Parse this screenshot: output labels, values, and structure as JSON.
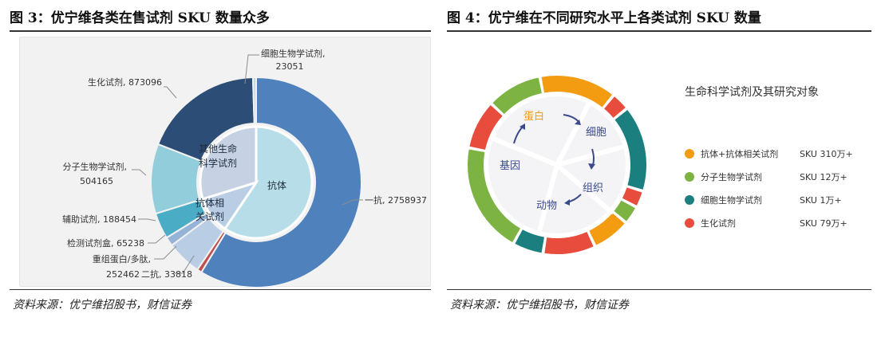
{
  "left": {
    "title": "图 3：优宁维各类在售试剂 SKU 数量众多",
    "source": "资料来源：优宁维招股书，财信证券",
    "chart_data": {
      "type": "pie",
      "title": "",
      "outer": {
        "slices": [
          {
            "label": "一抗",
            "value": 2758937,
            "color": "#4f81bd"
          },
          {
            "label": "二抗",
            "value": 33818,
            "color": "#c0504d"
          },
          {
            "label": "重组蛋白/多肽",
            "value": 252462,
            "color": "#b9cde5"
          },
          {
            "label": "检测试剂盒",
            "value": 65238,
            "color": "#95b3d7"
          },
          {
            "label": "辅助试剂",
            "value": 188454,
            "color": "#4bacc6"
          },
          {
            "label": "分子生物学试剂",
            "value": 504165,
            "color": "#92cddc"
          },
          {
            "label": "生化试剂",
            "value": 873096,
            "color": "#2c4d75"
          },
          {
            "label": "细胞生物学试剂",
            "value": 23051,
            "color": "#b7dee8"
          }
        ]
      },
      "inner": {
        "slices": [
          {
            "label": "抗体",
            "value": 2792755,
            "color": "#b7dee8"
          },
          {
            "label": "抗体相关试剂",
            "value": 506154,
            "color": "#b9cde5"
          },
          {
            "label": "其他生命科学试剂",
            "value": 1400312,
            "color": "#c6d2e3"
          }
        ],
        "label_lines": {
          "antibody": "抗体",
          "related": [
            "抗体相",
            "关试剂"
          ],
          "other": [
            "其他生命",
            "科学试剂"
          ]
        }
      },
      "callouts": {
        "yikang": "一抗, 2758937",
        "shenghua": "生化试剂, 873096",
        "xibao_name": "细胞生物学试剂,",
        "xibao_val": "23051",
        "fenzi_name": "分子生物学试剂,",
        "fenzi_val": "504165",
        "fuzhu": "辅助试剂, 188454",
        "jiance": "检测试剂盒, 65238",
        "chongzu_name": "重组蛋白/多肽,",
        "chongzu_val": "252462",
        "erkang": "二抗, 33818"
      }
    }
  },
  "right": {
    "title": "图 4：优宁维在不同研究水平上各类试剂 SKU 数量",
    "source": "资料来源：优宁维招股书，财信证券",
    "diagram": {
      "ring_words": {
        "protein": "蛋白",
        "cell": "细胞",
        "tissue": "组织",
        "animal": "动物",
        "gene": "基因"
      },
      "colors": {
        "orange": "#f39c12",
        "green": "#7cb342",
        "teal": "#1b7f7f",
        "red": "#e74c3c",
        "arrow": "#3b4a8c"
      },
      "legend_title": "生命科学试剂及其研究对象",
      "legend": [
        {
          "label": "抗体+抗体相关试剂",
          "sku": "SKU 310万+",
          "color": "#f39c12"
        },
        {
          "label": "分子生物学试剂",
          "sku": "SKU 12万+",
          "color": "#7cb342"
        },
        {
          "label": "细胞生物学试剂",
          "sku": "SKU 1万+",
          "color": "#1b7f7f"
        },
        {
          "label": "生化试剂",
          "sku": "SKU 79万+",
          "color": "#e74c3c"
        }
      ]
    }
  }
}
